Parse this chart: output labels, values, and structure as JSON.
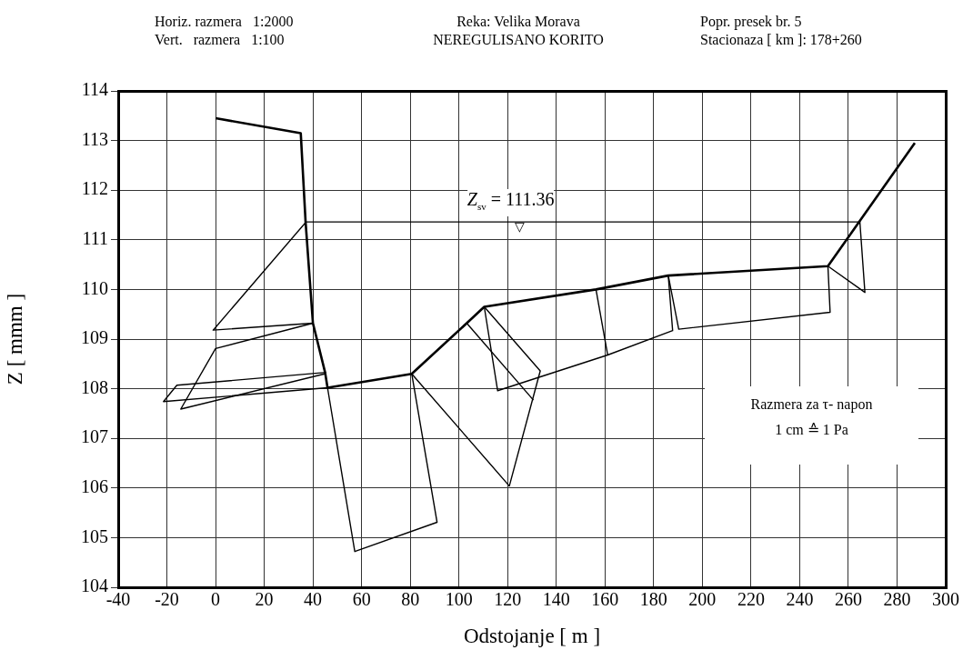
{
  "chart_data": {
    "type": "line",
    "xlabel": "Odstojanje [ m ]",
    "ylabel": "Z [ mmm ]",
    "xlim": [
      -40,
      300
    ],
    "xticks": [
      -40,
      -20,
      0,
      20,
      40,
      60,
      80,
      100,
      120,
      140,
      160,
      180,
      200,
      220,
      240,
      260,
      280,
      300
    ],
    "ylim": [
      104,
      114
    ],
    "yticks": [
      104,
      105,
      106,
      107,
      108,
      109,
      110,
      111,
      112,
      113,
      114
    ],
    "grid": true,
    "legend": false,
    "marker": "none",
    "line_style": "solid",
    "annotations": [
      "Horiz. razmera   1:2000",
      "Vert.   razmera   1:100",
      "Reka: Velika Morava",
      "NEREGULISANO KORITO",
      "Popr. presek br. 5",
      "Stacionaza [ km ]: 178+260",
      "Razmera za τ- napon",
      "1 cm ≙ 1 Pa",
      {
        "text": "Z$_{sv}$ = 111.36",
        "x": 125,
        "y": 111.36
      },
      {
        "text": "▽",
        "x": 125,
        "y": 111.36
      }
    ],
    "series": [
      {
        "color": "#000000",
        "x": [
          0,
          35,
          37,
          40,
          45,
          46,
          80.6,
          103.2,
          110.4,
          156.3,
          186,
          251.6,
          264.7,
          287.3
        ],
        "values": [
          113.45,
          113.15,
          111.35,
          109.32,
          108.33,
          108.02,
          108.3,
          109.32,
          109.65,
          110.0,
          110.28,
          110.47,
          111.38,
          112.95
        ]
      },
      {
        "color": "#000000",
        "x": [
          37,
          264.7
        ],
        "values": [
          111.36,
          111.36
        ]
      },
      {
        "color": "#000000",
        "x": [
          37,
          -1,
          40
        ],
        "values": [
          111.35,
          109.18,
          109.32
        ]
      },
      {
        "color": "#000000",
        "x": [
          40,
          0,
          -14.3,
          44.8
        ],
        "values": [
          109.32,
          108.81,
          107.59,
          108.3
        ]
      },
      {
        "color": "#000000",
        "x": [
          45.4,
          -15.9,
          -21.4,
          46
        ],
        "values": [
          108.33,
          108.07,
          107.74,
          108.02
        ]
      },
      {
        "color": "#000000",
        "x": [
          46,
          57.2,
          91,
          80.6
        ],
        "values": [
          108.02,
          104.72,
          105.31,
          108.3
        ]
      },
      {
        "color": "#000000",
        "x": [
          80.6,
          120.7,
          133.4,
          110.4
        ],
        "values": [
          108.3,
          106.04,
          108.36,
          109.65
        ]
      },
      {
        "color": "#000000",
        "x": [
          103.2,
          130.6
        ],
        "values": [
          109.32,
          107.77
        ]
      },
      {
        "color": "#000000",
        "x": [
          110.4,
          115.9,
          161.1,
          187.8,
          186
        ],
        "values": [
          109.65,
          107.96,
          108.68,
          109.17,
          110.28
        ]
      },
      {
        "color": "#000000",
        "x": [
          156.3,
          161.1
        ],
        "values": [
          110.0,
          108.68
        ]
      },
      {
        "color": "#000000",
        "x": [
          186,
          190.3,
          252.5,
          251.6
        ],
        "values": [
          110.28,
          109.2,
          109.54,
          110.47
        ]
      },
      {
        "color": "#000000",
        "x": [
          251.6,
          266.8,
          264.7
        ],
        "values": [
          110.47,
          109.94,
          111.38
        ]
      }
    ]
  }
}
